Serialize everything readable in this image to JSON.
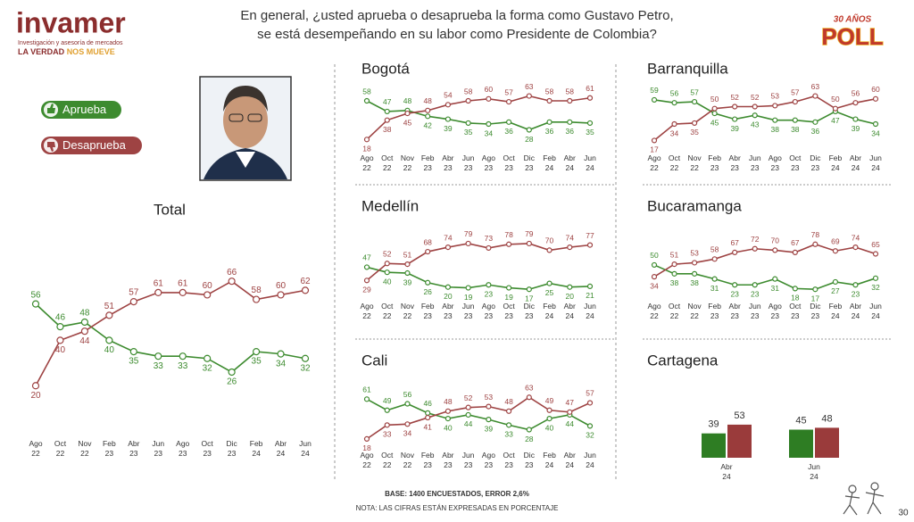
{
  "logo": {
    "name": "invamer",
    "tagline": "Investigación y asesoría de mercados",
    "slogan_a": "LA VERDAD",
    "slogan_b": "NOS MUEVE"
  },
  "question": [
    "En general, ¿usted aprueba o desaprueba la forma como Gustavo Petro,",
    "se está desempeñando en su labor como Presidente de Colombia?"
  ],
  "badge": {
    "top": "30 AÑOS",
    "main": "POLL"
  },
  "chart_data": [
    {
      "type": "line",
      "title": "Total",
      "categories": [
        "Ago 22",
        "Oct 22",
        "Nov 22",
        "Feb 23",
        "Abr 23",
        "Jun 23",
        "Ago 23",
        "Oct 23",
        "Dic 23",
        "Feb 24",
        "Abr 24",
        "Jun 24"
      ],
      "series": [
        {
          "name": "Aprueba",
          "color": "#3d8b2f",
          "values": [
            56,
            46,
            48,
            40,
            35,
            33,
            33,
            32,
            26,
            35,
            34,
            32
          ]
        },
        {
          "name": "Desaprueba",
          "color": "#9e4343",
          "values": [
            20,
            40,
            44,
            51,
            57,
            61,
            61,
            60,
            66,
            58,
            60,
            62
          ]
        }
      ],
      "ylim": [
        15,
        70
      ]
    },
    {
      "type": "line",
      "title": "Bogotá",
      "categories": [
        "Ago 22",
        "Oct 22",
        "Nov 22",
        "Feb 23",
        "Abr 23",
        "Jun 23",
        "Ago 23",
        "Oct 23",
        "Dic 23",
        "Feb 24",
        "Abr 24",
        "Jun 24"
      ],
      "series": [
        {
          "color": "#3d8b2f",
          "values": [
            58,
            47,
            48,
            42,
            39,
            35,
            34,
            36,
            28,
            36,
            36,
            35
          ]
        },
        {
          "color": "#9e4343",
          "values": [
            18,
            38,
            45,
            48,
            54,
            58,
            60,
            57,
            63,
            58,
            58,
            61
          ]
        }
      ],
      "ylim": [
        10,
        70
      ]
    },
    {
      "type": "line",
      "title": "Barranquilla",
      "categories": [
        "Ago 22",
        "Oct 22",
        "Nov 22",
        "Feb 23",
        "Abr 23",
        "Jun 23",
        "Ago 23",
        "Oct 23",
        "Dic 23",
        "Feb 24",
        "Abr 24",
        "Jun 24"
      ],
      "series": [
        {
          "color": "#3d8b2f",
          "values": [
            59,
            56,
            57,
            45,
            39,
            43,
            38,
            38,
            36,
            47,
            39,
            34
          ]
        },
        {
          "color": "#9e4343",
          "values": [
            17,
            34,
            35,
            50,
            52,
            52,
            53,
            57,
            63,
            50,
            56,
            60
          ]
        }
      ],
      "ylim": [
        10,
        70
      ]
    },
    {
      "type": "line",
      "title": "Medellín",
      "categories": [
        "Ago 22",
        "Oct 22",
        "Nov 22",
        "Feb 23",
        "Abr 23",
        "Jun 23",
        "Ago 23",
        "Oct 23",
        "Dic 23",
        "Feb 24",
        "Abr 24",
        "Jun 24"
      ],
      "series": [
        {
          "color": "#3d8b2f",
          "values": [
            47,
            40,
            39,
            26,
            20,
            19,
            23,
            19,
            17,
            25,
            20,
            21
          ]
        },
        {
          "color": "#9e4343",
          "values": [
            29,
            52,
            51,
            68,
            74,
            79,
            73,
            78,
            79,
            70,
            74,
            77
          ]
        }
      ],
      "ylim": [
        10,
        85
      ]
    },
    {
      "type": "line",
      "title": "Bucaramanga",
      "categories": [
        "Ago 22",
        "Oct 22",
        "Nov 22",
        "Feb 23",
        "Abr 23",
        "Jun 23",
        "Ago 23",
        "Oct 23",
        "Dic 23",
        "Feb 24",
        "Abr 24",
        "Jun 24"
      ],
      "series": [
        {
          "color": "#3d8b2f",
          "values": [
            50,
            38,
            38,
            31,
            23,
            23,
            31,
            18,
            17,
            27,
            23,
            32
          ]
        },
        {
          "color": "#9e4343",
          "values": [
            34,
            51,
            53,
            58,
            67,
            72,
            70,
            67,
            78,
            69,
            74,
            65
          ]
        }
      ],
      "ylim": [
        10,
        85
      ]
    },
    {
      "type": "line",
      "title": "Cali",
      "categories": [
        "Ago 22",
        "Oct 22",
        "Nov 22",
        "Feb 23",
        "Abr 23",
        "Jun 23",
        "Ago 23",
        "Oct 23",
        "Dic 23",
        "Feb 24",
        "Abr 24",
        "Jun 24"
      ],
      "series": [
        {
          "color": "#3d8b2f",
          "values": [
            61,
            49,
            56,
            46,
            40,
            44,
            39,
            33,
            28,
            40,
            44,
            32
          ]
        },
        {
          "color": "#9e4343",
          "values": [
            18,
            33,
            34,
            41,
            48,
            52,
            53,
            48,
            63,
            49,
            47,
            57
          ]
        }
      ],
      "ylim": [
        15,
        70
      ]
    },
    {
      "type": "bar",
      "title": "Cartagena",
      "categories": [
        "Abr 24",
        "Jun 24"
      ],
      "series": [
        {
          "color": "#2e7d23",
          "values": [
            39,
            45
          ]
        },
        {
          "color": "#9a3b3b",
          "values": [
            53,
            48
          ]
        }
      ],
      "ylim": [
        0,
        100
      ]
    }
  ],
  "footer": {
    "base": "BASE: 1400 ENCUESTADOS, ERROR 2,6%",
    "note": "NOTA: LAS CIFRAS ESTÁN EXPRESADAS EN PORCENTAJE",
    "page": "30"
  }
}
